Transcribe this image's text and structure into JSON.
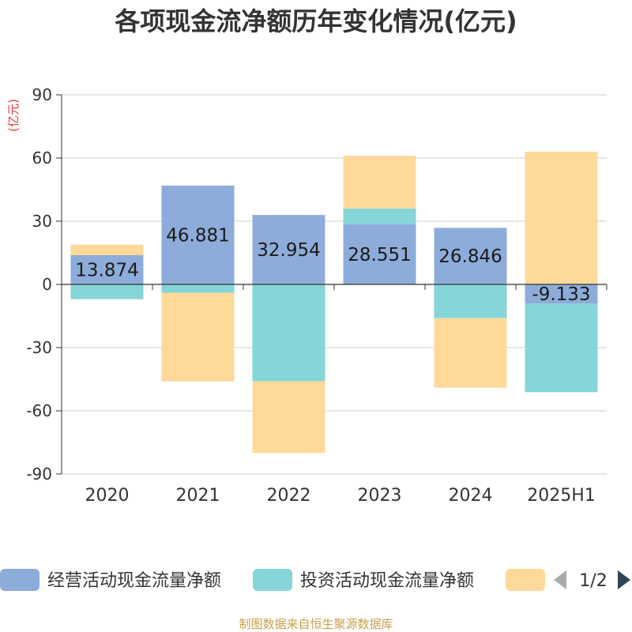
{
  "chart_data": {
    "type": "bar",
    "stacked": true,
    "title": "各项现金流净额历年变化情况(亿元)",
    "unit_label": "(亿元)",
    "categories": [
      "2020",
      "2021",
      "2022",
      "2023",
      "2024",
      "2025H1"
    ],
    "ylim": [
      -90,
      90
    ],
    "yticks": [
      90,
      60,
      30,
      0,
      -30,
      -60,
      -90
    ],
    "grid": true,
    "legend_position": "bottom",
    "series": [
      {
        "name": "经营活动现金流量净额",
        "color": "#8eacd9",
        "values": [
          13.874,
          46.881,
          32.954,
          28.551,
          26.846,
          -9.133
        ],
        "labels": [
          "13.874",
          "46.881",
          "32.954",
          "28.551",
          "26.846",
          "-9.133"
        ]
      },
      {
        "name": "投资活动现金流量净额",
        "color": "#86d5d7",
        "values": [
          -7,
          -4,
          -46,
          7.5,
          -16,
          -42
        ]
      },
      {
        "name": "",
        "color": "#fed99a",
        "values": [
          5,
          -42,
          -34,
          25,
          -33,
          63
        ]
      }
    ]
  },
  "legend": {
    "page_indicator": "1/2"
  },
  "source_text": "制图数据来自恒生聚源数据库"
}
